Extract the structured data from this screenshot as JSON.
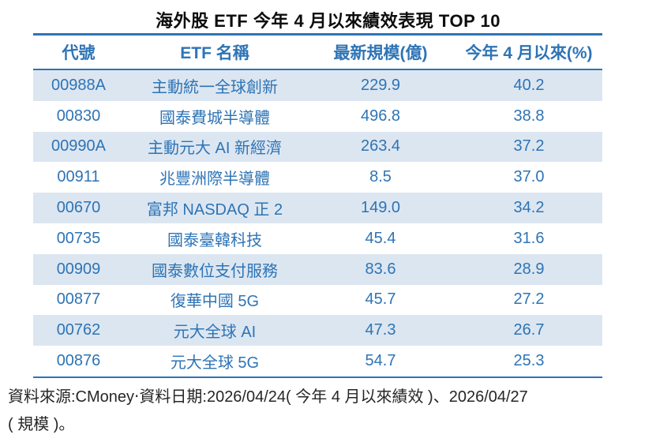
{
  "title": "海外股 ETF 今年 4 月以來績效表現 TOP 10",
  "table": {
    "headers": [
      "代號",
      "ETF 名稱",
      "最新規模(億)",
      "今年 4 月以來(%)"
    ],
    "rows": [
      {
        "code": "00988A",
        "name": "主動統一全球創新",
        "scale": "229.9",
        "perf": "40.2"
      },
      {
        "code": "00830",
        "name": "國泰費城半導體",
        "scale": "496.8",
        "perf": "38.8"
      },
      {
        "code": "00990A",
        "name": "主動元大 AI 新經濟",
        "scale": "263.4",
        "perf": "37.2"
      },
      {
        "code": "00911",
        "name": "兆豐洲際半導體",
        "scale": "8.5",
        "perf": "37.0"
      },
      {
        "code": "00670",
        "name": "富邦 NASDAQ 正 2",
        "scale": "149.0",
        "perf": "34.2"
      },
      {
        "code": "00735",
        "name": "國泰臺韓科技",
        "scale": "45.4",
        "perf": "31.6"
      },
      {
        "code": "00909",
        "name": "國泰數位支付服務",
        "scale": "83.6",
        "perf": "28.9"
      },
      {
        "code": "00877",
        "name": "復華中國 5G",
        "scale": "45.7",
        "perf": "27.2"
      },
      {
        "code": "00762",
        "name": "元大全球 AI",
        "scale": "47.3",
        "perf": "26.7"
      },
      {
        "code": "00876",
        "name": "元大全球 5G",
        "scale": "54.7",
        "perf": "25.3"
      }
    ]
  },
  "footer": {
    "line1": "資料來源:CMoney‧資料日期:2026/04/24( 今年 4 月以來績效 )、2026/04/27",
    "line2": "( 規模 )。"
  },
  "colors": {
    "accent_blue": "#2E74B5",
    "row_shade": "#DCE6F1",
    "title_text": "#0d0d0d",
    "footer_text": "#262626"
  },
  "chart_data": {
    "type": "table",
    "title": "海外股 ETF 今年 4 月以來績效表現 TOP 10",
    "columns": [
      "代號",
      "ETF 名稱",
      "最新規模(億)",
      "今年 4 月以來(%)"
    ],
    "rows": [
      [
        "00988A",
        "主動統一全球創新",
        229.9,
        40.2
      ],
      [
        "00830",
        "國泰費城半導體",
        496.8,
        38.8
      ],
      [
        "00990A",
        "主動元大 AI 新經濟",
        263.4,
        37.2
      ],
      [
        "00911",
        "兆豐洲際半導體",
        8.5,
        37.0
      ],
      [
        "00670",
        "富邦 NASDAQ 正 2",
        149.0,
        34.2
      ],
      [
        "00735",
        "國泰臺韓科技",
        45.4,
        31.6
      ],
      [
        "00909",
        "國泰數位支付服務",
        83.6,
        28.9
      ],
      [
        "00877",
        "復華中國 5G",
        45.7,
        27.2
      ],
      [
        "00762",
        "元大全球 AI",
        47.3,
        26.7
      ],
      [
        "00876",
        "元大全球 5G",
        54.7,
        25.3
      ]
    ],
    "source_note": "資料來源:CMoney‧資料日期:2026/04/24( 今年 4 月以來績效 )、2026/04/27( 規模 )。",
    "layout": {
      "striped": true,
      "stripe_start": "first-row",
      "grid": false
    }
  }
}
